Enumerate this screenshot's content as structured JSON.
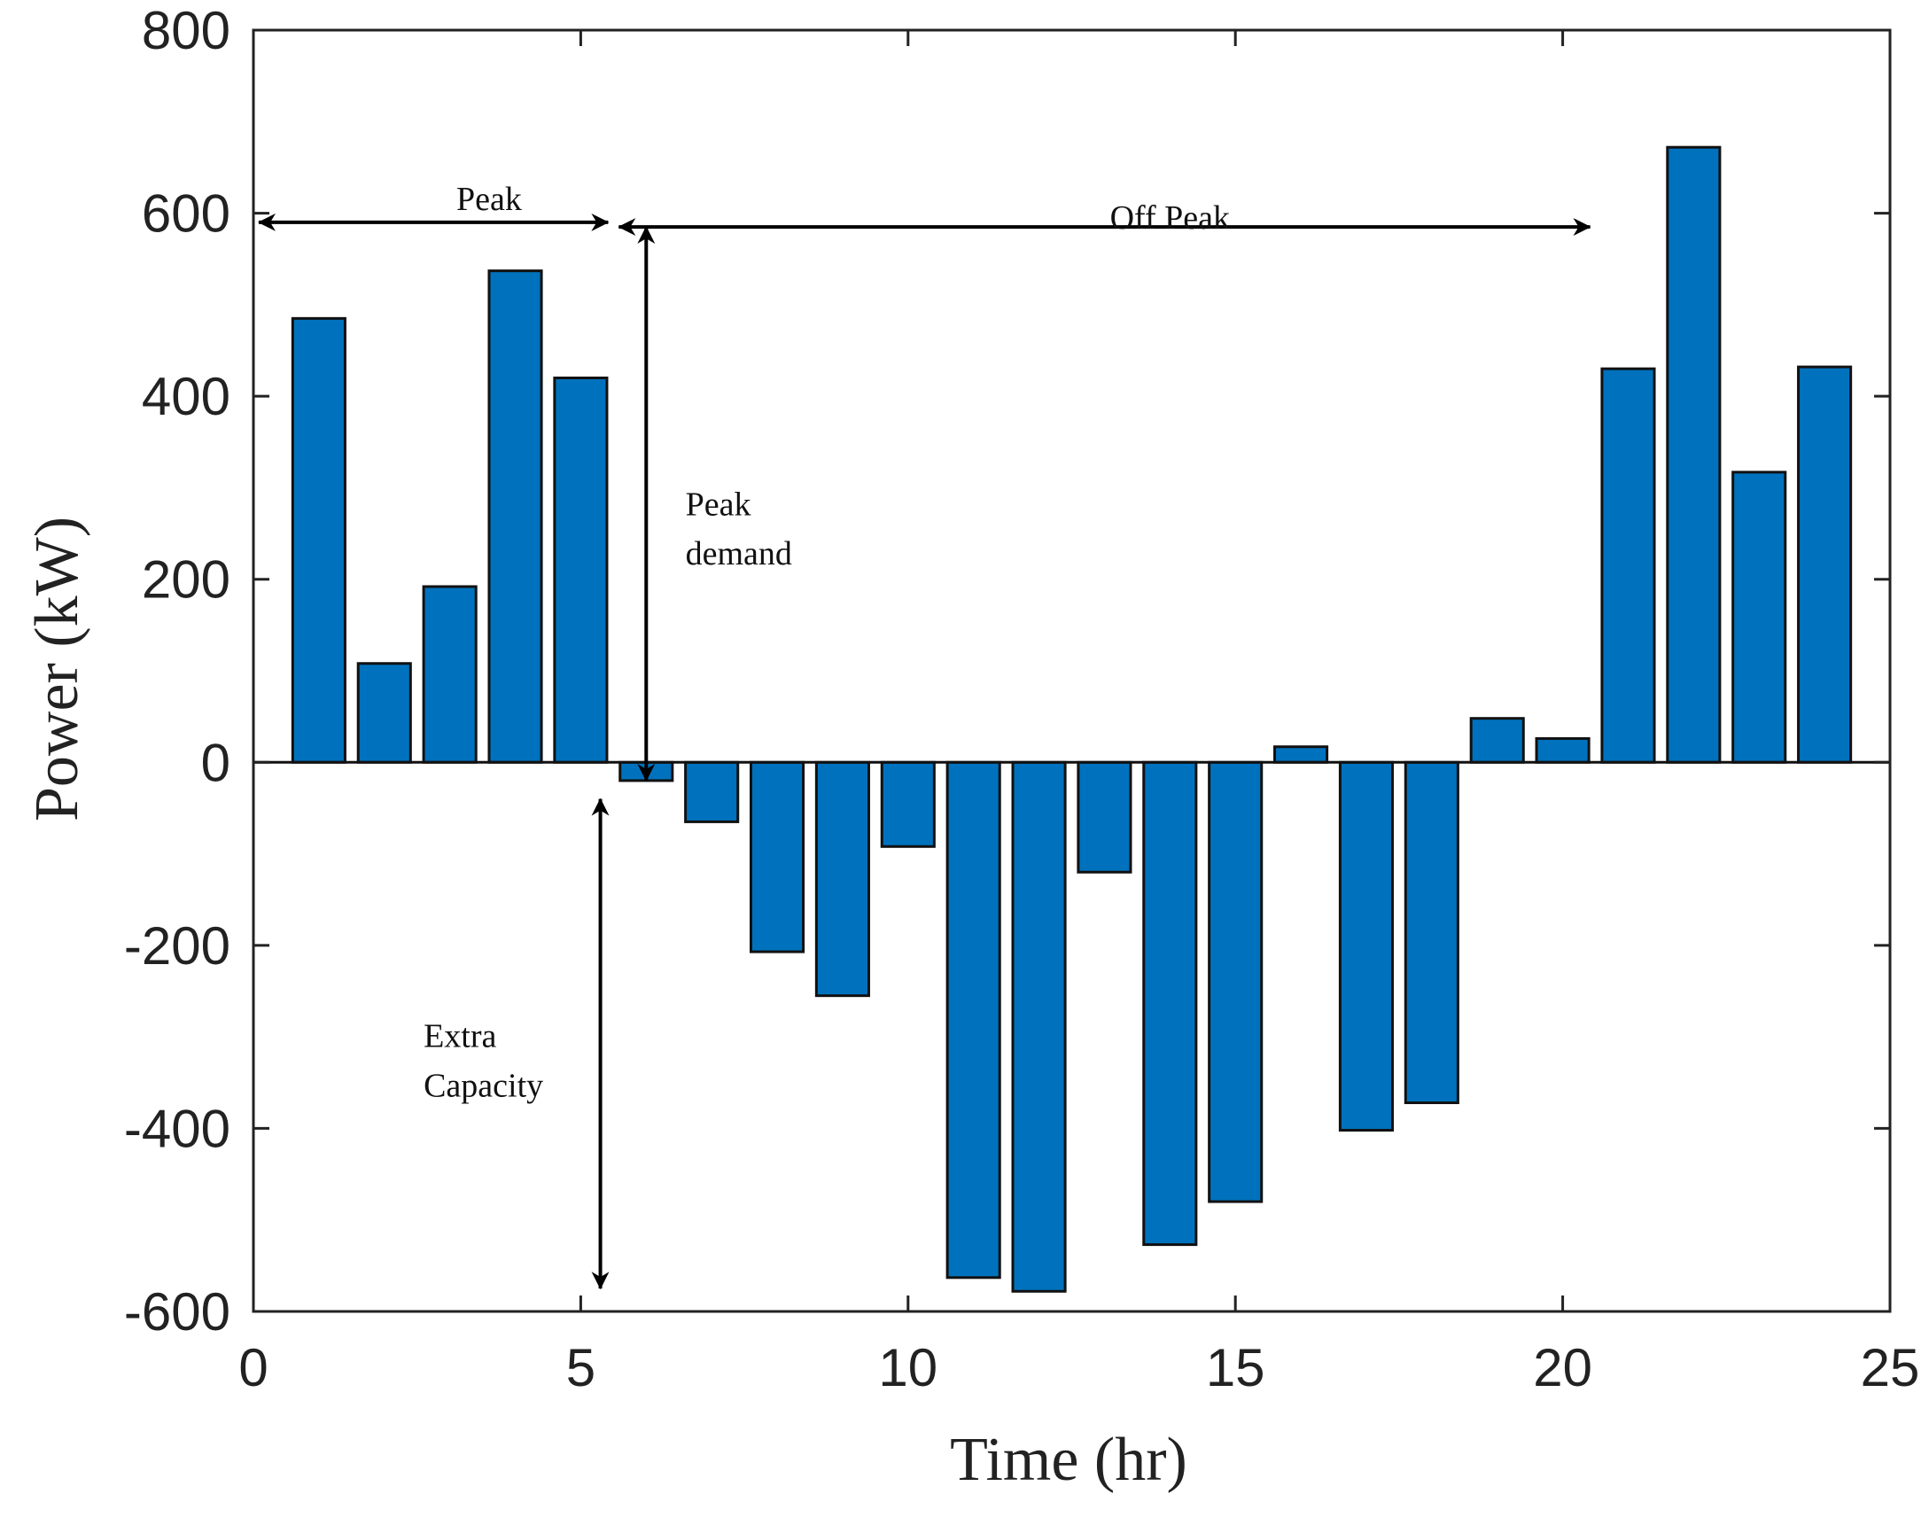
{
  "chart_data": {
    "type": "bar",
    "title": "",
    "xlabel": "Time (hr)",
    "ylabel": "Power (kW)",
    "x": [
      1,
      2,
      3,
      4,
      5,
      6,
      7,
      8,
      9,
      10,
      11,
      12,
      13,
      14,
      15,
      16,
      17,
      18,
      19,
      20,
      21,
      22,
      23,
      24
    ],
    "values": [
      485,
      108,
      192,
      537,
      420,
      -20,
      -65,
      -207,
      -255,
      -92,
      -563,
      -578,
      -120,
      -527,
      -480,
      17,
      -402,
      -372,
      48,
      26,
      430,
      672,
      317,
      432
    ],
    "xlim": [
      0,
      25
    ],
    "ylim": [
      -600,
      800
    ],
    "xticks": [
      0,
      5,
      10,
      15,
      20,
      25
    ],
    "yticks": [
      -600,
      -400,
      -200,
      0,
      200,
      400,
      600,
      800
    ],
    "xtick_labels": [
      "0",
      "5",
      "10",
      "15",
      "20",
      "25"
    ],
    "ytick_labels": [
      "-600",
      "-400",
      "-200",
      "0",
      "200",
      "400",
      "600",
      "800"
    ],
    "grid": false,
    "bar_color": "#0072BD",
    "annotations": {
      "peak": {
        "text": "Peak",
        "x_start": 0,
        "x_end": 5.5,
        "y": 590
      },
      "off_peak": {
        "text": "Off Peak",
        "x_start": 5.5,
        "x_end": 20.5,
        "y": 585
      },
      "peak_demand": {
        "line1": "Peak",
        "line2": "demand",
        "x": 6,
        "y_start": 585,
        "y_end": -20
      },
      "extra_capacity": {
        "line1": "Extra",
        "line2": "Capacity",
        "x": 5.3,
        "y_start": -40,
        "y_end": -575
      }
    }
  }
}
